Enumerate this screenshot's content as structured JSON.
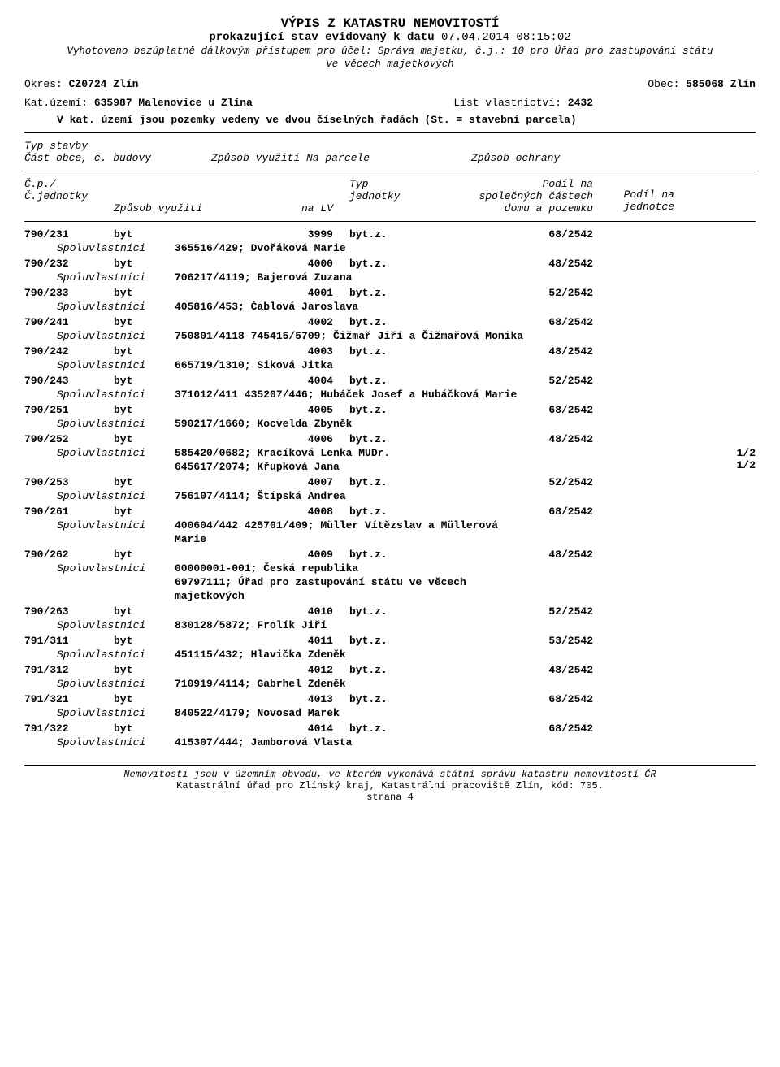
{
  "header": {
    "title": "VÝPIS Z KATASTRU NEMOVITOSTÍ",
    "subtitle_prefix": "prokazující stav evidovaný k datu ",
    "subtitle_date": "07.04.2014 08:15:02",
    "note_line1": "Vyhotoveno bezúplatně dálkovým přístupem pro účel: Správa majetku, č.j.: 10 pro Úřad pro zastupování státu",
    "note_line2": "ve věcech majetkových",
    "okres_label": "Okres: ",
    "okres_value": "CZ0724 Zlín",
    "obec_label": "Obec: ",
    "obec_value": "585068 Zlín",
    "katuzemi_label": "Kat.území: ",
    "katuzemi_value": "635987 Malenovice u Zlína",
    "lv_label": "List vlastnictví: ",
    "lv_value": "2432",
    "note3": "V kat. území jsou pozemky vedeny ve dvou číselných řadách  (St. = stavební parcela)"
  },
  "section": {
    "typ_stavby": "Typ stavby",
    "cast_obce": "Část obce, č. budovy",
    "zpusob_na_parcele": "Způsob využití  Na parcele",
    "zpusob_ochrany": "Způsob ochrany"
  },
  "columns": {
    "cp": "Č.p./",
    "cj": "Č.jednotky",
    "zpusob": "Způsob využití",
    "nalv": "na LV",
    "typ": "Typ",
    "jednotky": "jednotky",
    "podil1a": "Podíl na",
    "podil1b": "společných částech",
    "podil1c": "domu a pozemku",
    "podil2a": "Podíl na",
    "podil2b": "jednotce"
  },
  "owner_label": "Spoluvlastníci",
  "units": [
    {
      "id": "790/231",
      "typ": "byt",
      "lv": "3999",
      "j": "byt.z.",
      "podil": "68/2542",
      "owners": [
        {
          "text": "365516/429; Dvořáková Marie"
        }
      ]
    },
    {
      "id": "790/232",
      "typ": "byt",
      "lv": "4000",
      "j": "byt.z.",
      "podil": "48/2542",
      "owners": [
        {
          "text": "706217/4119; Bajerová Zuzana"
        }
      ]
    },
    {
      "id": "790/233",
      "typ": "byt",
      "lv": "4001",
      "j": "byt.z.",
      "podil": "52/2542",
      "owners": [
        {
          "text": "405816/453; Čablová Jaroslava"
        }
      ]
    },
    {
      "id": "790/241",
      "typ": "byt",
      "lv": "4002",
      "j": "byt.z.",
      "podil": "68/2542",
      "owners": [
        {
          "text": "750801/4118  745415/5709; Čižmař Jiří a Čižmařová Monika"
        }
      ]
    },
    {
      "id": "790/242",
      "typ": "byt",
      "lv": "4003",
      "j": "byt.z.",
      "podil": "48/2542",
      "owners": [
        {
          "text": "665719/1310; Siková Jitka"
        }
      ]
    },
    {
      "id": "790/243",
      "typ": "byt",
      "lv": "4004",
      "j": "byt.z.",
      "podil": "52/2542",
      "owners": [
        {
          "text": "371012/411  435207/446; Hubáček Josef a Hubáčková Marie"
        }
      ]
    },
    {
      "id": "790/251",
      "typ": "byt",
      "lv": "4005",
      "j": "byt.z.",
      "podil": "68/2542",
      "owners": [
        {
          "text": "590217/1660; Kocvelda Zbyněk"
        }
      ]
    },
    {
      "id": "790/252",
      "typ": "byt",
      "lv": "4006",
      "j": "byt.z.",
      "podil": "48/2542",
      "owners": [
        {
          "text": "585420/0682; Kracíková Lenka MUDr.",
          "share": "1/2"
        },
        {
          "text": "645617/2074; Křupková Jana",
          "share": "1/2",
          "extra": true
        }
      ]
    },
    {
      "id": "790/253",
      "typ": "byt",
      "lv": "4007",
      "j": "byt.z.",
      "podil": "52/2542",
      "owners": [
        {
          "text": "756107/4114; Štípská Andrea"
        }
      ]
    },
    {
      "id": "790/261",
      "typ": "byt",
      "lv": "4008",
      "j": "byt.z.",
      "podil": "68/2542",
      "owners": [
        {
          "text": "400604/442  425701/409; Müller Vítězslav a Müllerová"
        },
        {
          "text": "Marie",
          "extra": true
        }
      ]
    },
    {
      "id": "790/262",
      "typ": "byt",
      "lv": "4009",
      "j": "byt.z.",
      "podil": "48/2542",
      "owners": [
        {
          "text": "00000001-001; Česká republika"
        },
        {
          "text": "69797111; Úřad pro zastupování státu ve věcech",
          "extra": true
        },
        {
          "text": "majetkových",
          "extra": true
        }
      ]
    },
    {
      "id": "790/263",
      "typ": "byt",
      "lv": "4010",
      "j": "byt.z.",
      "podil": "52/2542",
      "owners": [
        {
          "text": "830128/5872; Frolík Jiří"
        }
      ]
    },
    {
      "id": "791/311",
      "typ": "byt",
      "lv": "4011",
      "j": "byt.z.",
      "podil": "53/2542",
      "owners": [
        {
          "text": "451115/432; Hlavička Zdeněk"
        }
      ]
    },
    {
      "id": "791/312",
      "typ": "byt",
      "lv": "4012",
      "j": "byt.z.",
      "podil": "48/2542",
      "owners": [
        {
          "text": "710919/4114; Gabrhel Zdeněk"
        }
      ]
    },
    {
      "id": "791/321",
      "typ": "byt",
      "lv": "4013",
      "j": "byt.z.",
      "podil": "68/2542",
      "owners": [
        {
          "text": "840522/4179; Novosad Marek"
        }
      ]
    },
    {
      "id": "791/322",
      "typ": "byt",
      "lv": "4014",
      "j": "byt.z.",
      "podil": "68/2542",
      "owners": [
        {
          "text": "415307/444; Jamborová Vlasta"
        }
      ]
    }
  ],
  "footer": {
    "line1": "Nemovitosti jsou v územním obvodu, ve kterém vykonává státní správu katastru nemovitostí ČR",
    "line2": "Katastrální úřad pro Zlínský kraj, Katastrální pracoviště Zlín, kód: 705.",
    "page": "strana 4"
  }
}
